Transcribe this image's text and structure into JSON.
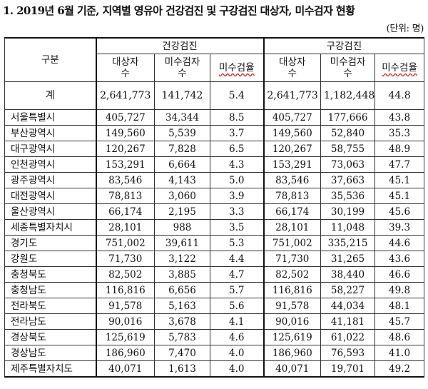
{
  "title": "1. 2019년 6월 기준, 지역별 영유아 건강검진 및 구강검진 대상자, 미수검자 현황",
  "unit": "(단위: 명)",
  "header": {
    "category": "구분",
    "health_group": "건강검진",
    "dental_group": "구강검진",
    "subject_line1": "대상자",
    "subject_line2": "수",
    "unexamined_line1": "미수검자",
    "unexamined_line2": "수",
    "rate": "미수검율"
  },
  "total": {
    "name": "계",
    "h_subjects": "2,641,773",
    "h_unexamined": "141,742",
    "h_rate": "5.4",
    "d_subjects": "2,641,773",
    "d_unexamined": "1,182,448",
    "d_rate": "44.8"
  },
  "rows": [
    {
      "name": "서울특별시",
      "h_subjects": "405,727",
      "h_unexamined": "34,344",
      "h_rate": "8.5",
      "d_subjects": "405,727",
      "d_unexamined": "177,666",
      "d_rate": "43.8"
    },
    {
      "name": "부산광역시",
      "h_subjects": "149,560",
      "h_unexamined": "5,539",
      "h_rate": "3.7",
      "d_subjects": "149,560",
      "d_unexamined": "52,840",
      "d_rate": "35.3"
    },
    {
      "name": "대구광역시",
      "h_subjects": "120,267",
      "h_unexamined": "7,828",
      "h_rate": "6.5",
      "d_subjects": "120,267",
      "d_unexamined": "58,755",
      "d_rate": "48.9"
    },
    {
      "name": "인천광역시",
      "h_subjects": "153,291",
      "h_unexamined": "6,664",
      "h_rate": "4.3",
      "d_subjects": "153,291",
      "d_unexamined": "73,063",
      "d_rate": "47.7"
    },
    {
      "name": "광주광역시",
      "h_subjects": "83,546",
      "h_unexamined": "4,143",
      "h_rate": "5.0",
      "d_subjects": "83,546",
      "d_unexamined": "37,663",
      "d_rate": "45.1"
    },
    {
      "name": "대전광역시",
      "h_subjects": "78,813",
      "h_unexamined": "3,060",
      "h_rate": "3.9",
      "d_subjects": "78,813",
      "d_unexamined": "35,536",
      "d_rate": "45.1"
    },
    {
      "name": "울산광역시",
      "h_subjects": "66,174",
      "h_unexamined": "2,195",
      "h_rate": "3.3",
      "d_subjects": "66,174",
      "d_unexamined": "30,199",
      "d_rate": "45.6"
    },
    {
      "name": "세종특별자치시",
      "h_subjects": "28,101",
      "h_unexamined": "988",
      "h_rate": "3.5",
      "d_subjects": "28,101",
      "d_unexamined": "11,048",
      "d_rate": "39.3"
    },
    {
      "name": "경기도",
      "h_subjects": "751,002",
      "h_unexamined": "39,611",
      "h_rate": "5.3",
      "d_subjects": "751,002",
      "d_unexamined": "335,215",
      "d_rate": "44.6"
    },
    {
      "name": "강원도",
      "h_subjects": "71,730",
      "h_unexamined": "3,122",
      "h_rate": "4.4",
      "d_subjects": "71,730",
      "d_unexamined": "31,265",
      "d_rate": "43.6"
    },
    {
      "name": "충청북도",
      "h_subjects": "82,502",
      "h_unexamined": "3,885",
      "h_rate": "4.7",
      "d_subjects": "82,502",
      "d_unexamined": "38,440",
      "d_rate": "46.6"
    },
    {
      "name": "충청남도",
      "h_subjects": "116,816",
      "h_unexamined": "6,656",
      "h_rate": "5.7",
      "d_subjects": "116,816",
      "d_unexamined": "58,227",
      "d_rate": "49.8"
    },
    {
      "name": "전라북도",
      "h_subjects": "91,578",
      "h_unexamined": "5,163",
      "h_rate": "5.6",
      "d_subjects": "91,578",
      "d_unexamined": "44,034",
      "d_rate": "48.1"
    },
    {
      "name": "전라남도",
      "h_subjects": "90,016",
      "h_unexamined": "3,678",
      "h_rate": "4.1",
      "d_subjects": "90,016",
      "d_unexamined": "41,181",
      "d_rate": "45.7"
    },
    {
      "name": "경상북도",
      "h_subjects": "125,619",
      "h_unexamined": "5,783",
      "h_rate": "4.6",
      "d_subjects": "125,619",
      "d_unexamined": "61,022",
      "d_rate": "48.6"
    },
    {
      "name": "경상남도",
      "h_subjects": "186,960",
      "h_unexamined": "7,470",
      "h_rate": "4.0",
      "d_subjects": "186,960",
      "d_unexamined": "76,593",
      "d_rate": "41.0"
    },
    {
      "name": "제주특별자치도",
      "h_subjects": "40,071",
      "h_unexamined": "1,613",
      "h_rate": "4.0",
      "d_subjects": "40,071",
      "d_unexamined": "19,701",
      "d_rate": "49.2"
    }
  ]
}
